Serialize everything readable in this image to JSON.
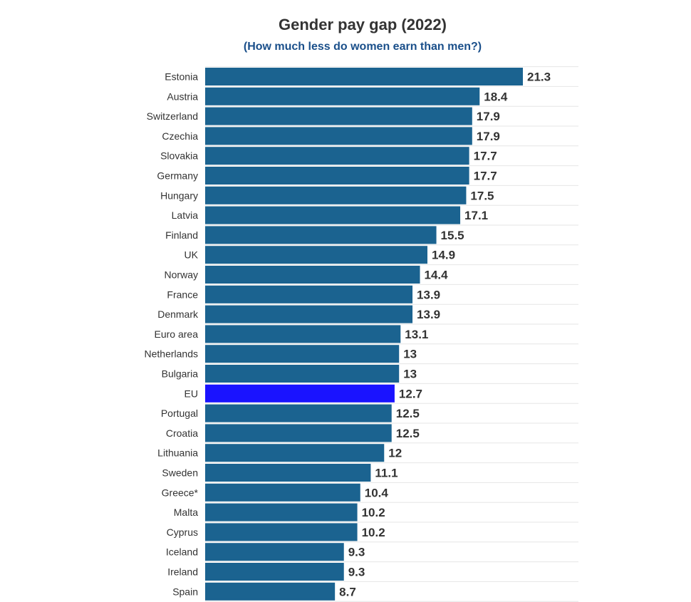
{
  "chart_data": {
    "type": "bar",
    "orientation": "horizontal",
    "title": "Gender pay gap (2022)",
    "subtitle": "(How much less do women earn than men?)",
    "categories": [
      "Estonia",
      "Austria",
      "Switzerland",
      "Czechia",
      "Slovakia",
      "Germany",
      "Hungary",
      "Latvia",
      "Finland",
      "UK",
      "Norway",
      "France",
      "Denmark",
      "Euro area",
      "Netherlands",
      "Bulgaria",
      "EU",
      "Portugal",
      "Croatia",
      "Lithuania",
      "Sweden",
      "Greece*",
      "Malta",
      "Cyprus",
      "Iceland",
      "Ireland",
      "Spain"
    ],
    "values": [
      21.3,
      18.4,
      17.9,
      17.9,
      17.7,
      17.7,
      17.5,
      17.1,
      15.5,
      14.9,
      14.4,
      13.9,
      13.9,
      13.1,
      13,
      13,
      12.7,
      12.5,
      12.5,
      12,
      11.1,
      10.4,
      10.2,
      10.2,
      9.3,
      9.3,
      8.7
    ],
    "value_labels": [
      "21.3",
      "18.4",
      "17.9",
      "17.9",
      "17.7",
      "17.7",
      "17.5",
      "17.1",
      "15.5",
      "14.9",
      "14.4",
      "13.9",
      "13.9",
      "13.1",
      "13",
      "13",
      "12.7",
      "12.5",
      "12.5",
      "12",
      "11.1",
      "10.4",
      "10.2",
      "10.2",
      "9.3",
      "9.3",
      "8.7"
    ],
    "highlight_category": "EU",
    "xlim": [
      0,
      25
    ],
    "grid": true,
    "data_labels": true,
    "legend": "none"
  },
  "colors": {
    "bar": "#1b6390",
    "highlight": "#1a13ff",
    "grid": "#e6e6e6",
    "text": "#333333",
    "subtitle": "#1a4f8a"
  }
}
